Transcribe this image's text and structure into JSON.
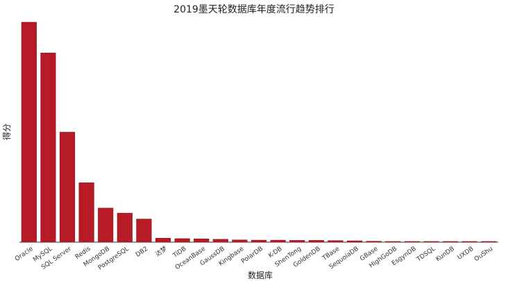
{
  "chart_data": {
    "type": "bar",
    "title": "2019墨天轮数据库年度流行趋势排行",
    "xlabel": "数据库",
    "ylabel": "得分",
    "categories": [
      "Oracle",
      "MySQL",
      "SQL Server",
      "Redis",
      "MongoDB",
      "PostgreSQL",
      "DB2",
      "达梦",
      "TiDB",
      "OceanBase",
      "GaussDB",
      "Kingbase",
      "PolarDB",
      "K-DB",
      "ShenTong",
      "GoldenDB",
      "TBase",
      "SequoiaDB",
      "GBase",
      "HighGoDB",
      "EsgynDB",
      "TDSQL",
      "KunDB",
      "UXDB",
      "OuShu"
    ],
    "values": [
      100,
      86,
      50,
      27,
      15.5,
      13.2,
      10.5,
      1.8,
      1.6,
      1.5,
      1.3,
      1.0,
      0.9,
      0.9,
      0.8,
      0.8,
      0.7,
      0.6,
      0.4,
      0.3,
      0.3,
      0.3,
      0.25,
      0.25,
      0.2
    ],
    "ylim": [
      0,
      100
    ],
    "bar_color": "#b71c26",
    "bar_edge_color": "#8a1019",
    "grid": false,
    "legend": "none"
  }
}
